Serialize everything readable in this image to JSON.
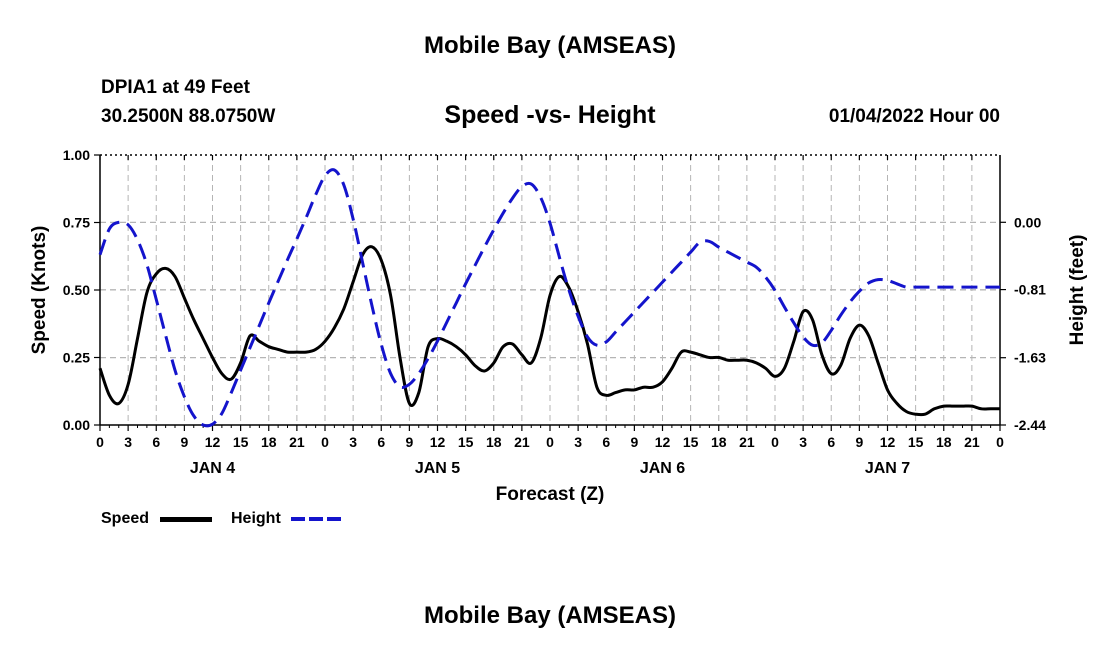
{
  "page": {
    "title": "Mobile Bay (AMSEAS)",
    "station": "DPIA1 at 49 Feet",
    "coords": "30.2500N  88.0750W",
    "datetime": "01/04/2022 Hour 00",
    "footer_title": "Mobile Bay (AMSEAS)"
  },
  "chart_data": {
    "type": "line",
    "title": "Speed -vs- Height",
    "xlabel": "Forecast (Z)",
    "ylabel": "Speed (Knots)",
    "y2label": "Height (feet)",
    "ylim": [
      0,
      1.0
    ],
    "y2lim": [
      -2.44,
      0.81
    ],
    "yticks": [
      "0.00",
      "0.25",
      "0.50",
      "0.75",
      "1.00"
    ],
    "yticks_values": [
      0,
      0.25,
      0.5,
      0.75,
      1.0
    ],
    "y2ticks": [
      "-2.44",
      "-1.63",
      "-0.81",
      "0.00"
    ],
    "y2ticks_values": [
      -2.44,
      -1.63,
      -0.81,
      0.0
    ],
    "xlim": [
      0,
      96
    ],
    "xticks_hours": [
      0,
      3,
      6,
      9,
      12,
      15,
      18,
      21,
      24,
      27,
      30,
      33,
      36,
      39,
      42,
      45,
      48,
      51,
      54,
      57,
      60,
      63,
      66,
      69,
      72,
      75,
      78,
      81,
      84,
      87,
      90,
      93,
      96
    ],
    "xticks_labels": [
      "0",
      "3",
      "6",
      "9",
      "12",
      "15",
      "18",
      "21",
      "0",
      "3",
      "6",
      "9",
      "12",
      "15",
      "18",
      "21",
      "0",
      "3",
      "6",
      "9",
      "12",
      "15",
      "18",
      "21",
      "0",
      "3",
      "6",
      "9",
      "12",
      "15",
      "18",
      "21",
      "0"
    ],
    "day_labels": [
      {
        "label": "JAN 4",
        "hour": 12
      },
      {
        "label": "JAN 5",
        "hour": 36
      },
      {
        "label": "JAN 6",
        "hour": 60
      },
      {
        "label": "JAN 7",
        "hour": 84
      }
    ],
    "grid": true,
    "legend_position": "bottom-left",
    "series": [
      {
        "name": "Speed",
        "axis": "left",
        "color": "#000000",
        "dashed": false,
        "x": [
          0,
          1,
          2,
          3,
          4,
          5,
          6,
          7,
          8,
          9,
          10,
          11,
          12,
          13,
          14,
          15,
          16,
          17,
          18,
          19,
          20,
          21,
          22,
          23,
          24,
          25,
          26,
          27,
          28,
          29,
          30,
          31,
          32,
          33,
          34,
          35,
          36,
          37,
          38,
          39,
          40,
          41,
          42,
          43,
          44,
          45,
          46,
          47,
          48,
          49,
          50,
          51,
          52,
          53,
          54,
          55,
          56,
          57,
          58,
          59,
          60,
          61,
          62,
          63,
          64,
          65,
          66,
          67,
          68,
          69,
          70,
          71,
          72,
          73,
          74,
          75,
          76,
          77,
          78,
          79,
          80,
          81,
          82,
          83,
          84,
          85,
          86,
          87,
          88,
          89,
          90,
          91,
          92,
          93,
          94,
          95,
          96
        ],
        "values": [
          0.21,
          0.11,
          0.08,
          0.15,
          0.32,
          0.49,
          0.56,
          0.58,
          0.55,
          0.47,
          0.39,
          0.32,
          0.25,
          0.19,
          0.17,
          0.23,
          0.33,
          0.31,
          0.29,
          0.28,
          0.27,
          0.27,
          0.27,
          0.28,
          0.31,
          0.36,
          0.43,
          0.53,
          0.63,
          0.66,
          0.61,
          0.48,
          0.25,
          0.08,
          0.12,
          0.29,
          0.32,
          0.31,
          0.29,
          0.26,
          0.22,
          0.2,
          0.23,
          0.29,
          0.3,
          0.26,
          0.23,
          0.32,
          0.48,
          0.55,
          0.51,
          0.42,
          0.3,
          0.14,
          0.11,
          0.12,
          0.13,
          0.13,
          0.14,
          0.14,
          0.16,
          0.21,
          0.27,
          0.27,
          0.26,
          0.25,
          0.25,
          0.24,
          0.24,
          0.24,
          0.23,
          0.21,
          0.18,
          0.21,
          0.31,
          0.42,
          0.39,
          0.26,
          0.19,
          0.22,
          0.32,
          0.37,
          0.33,
          0.23,
          0.13,
          0.08,
          0.05,
          0.04,
          0.04,
          0.06,
          0.07,
          0.07,
          0.07,
          0.07,
          0.06,
          0.06,
          0.06
        ]
      },
      {
        "name": "Height",
        "axis": "right",
        "color": "#1414cc",
        "dashed": true,
        "x": [
          0,
          1,
          2,
          3,
          4,
          5,
          6,
          7,
          8,
          9,
          10,
          11,
          12,
          13,
          14,
          15,
          16,
          17,
          18,
          19,
          20,
          21,
          22,
          23,
          24,
          25,
          26,
          27,
          28,
          29,
          30,
          31,
          32,
          33,
          34,
          35,
          36,
          37,
          38,
          39,
          40,
          41,
          42,
          43,
          44,
          45,
          46,
          47,
          48,
          49,
          50,
          51,
          52,
          53,
          54,
          55,
          56,
          57,
          58,
          59,
          60,
          61,
          62,
          63,
          64,
          65,
          66,
          67,
          68,
          69,
          70,
          71,
          72,
          73,
          74,
          75,
          76,
          77,
          78,
          79,
          80,
          81,
          82,
          83,
          84,
          85,
          86,
          87,
          88,
          89,
          90,
          91,
          92,
          93,
          94,
          95,
          96
        ],
        "values": [
          -0.39,
          -0.08,
          0.0,
          -0.03,
          -0.21,
          -0.51,
          -0.93,
          -1.36,
          -1.78,
          -2.1,
          -2.33,
          -2.44,
          -2.43,
          -2.3,
          -2.05,
          -1.78,
          -1.51,
          -1.24,
          -0.97,
          -0.71,
          -0.45,
          -0.2,
          0.06,
          0.33,
          0.56,
          0.63,
          0.45,
          0.04,
          -0.48,
          -1.0,
          -1.47,
          -1.82,
          -1.98,
          -1.95,
          -1.82,
          -1.64,
          -1.43,
          -1.2,
          -0.97,
          -0.74,
          -0.52,
          -0.3,
          -0.09,
          0.11,
          0.29,
          0.43,
          0.46,
          0.3,
          -0.01,
          -0.42,
          -0.81,
          -1.13,
          -1.38,
          -1.48,
          -1.44,
          -1.32,
          -1.2,
          -1.08,
          -0.96,
          -0.84,
          -0.72,
          -0.6,
          -0.48,
          -0.36,
          -0.24,
          -0.23,
          -0.3,
          -0.36,
          -0.42,
          -0.48,
          -0.54,
          -0.66,
          -0.82,
          -1.02,
          -1.21,
          -1.38,
          -1.48,
          -1.45,
          -1.3,
          -1.12,
          -0.96,
          -0.83,
          -0.73,
          -0.69,
          -0.7,
          -0.74,
          -0.78,
          -0.78,
          -0.78,
          -0.78,
          -0.78,
          -0.78,
          -0.78,
          -0.78,
          -0.78,
          -0.78,
          -0.78
        ]
      }
    ]
  },
  "legend": {
    "speed_label": "Speed",
    "height_label": "Height"
  }
}
